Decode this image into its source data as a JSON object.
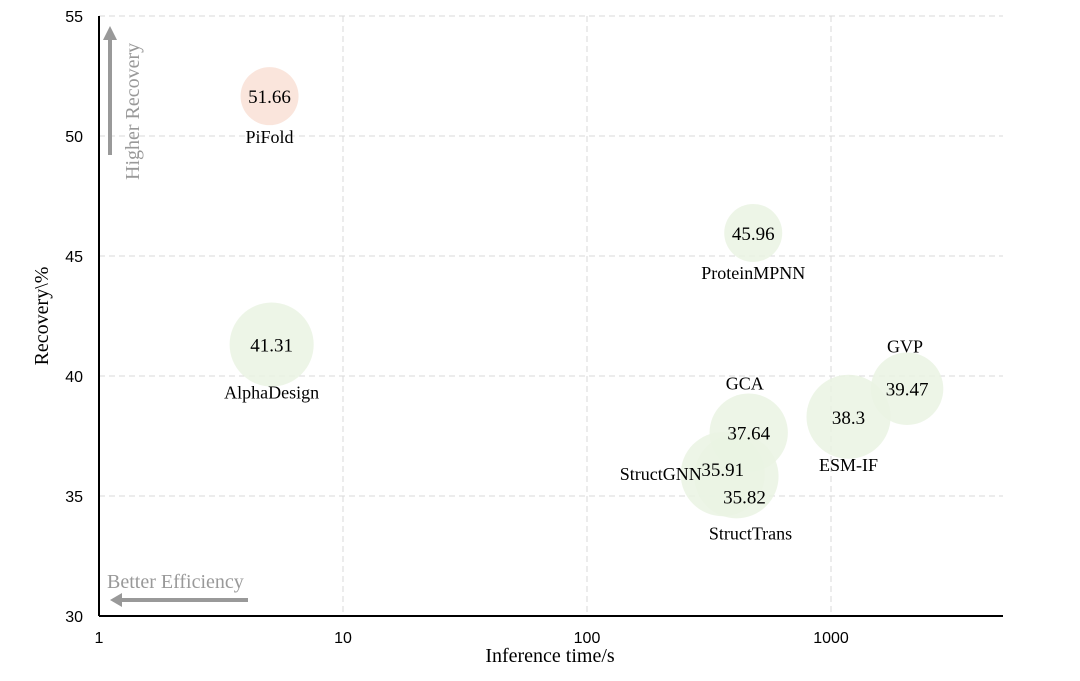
{
  "chart_data": {
    "type": "scatter",
    "xlabel": "Inference time/s",
    "ylabel": "Recovery\\%",
    "xscale": "log",
    "xlim": [
      1,
      5000
    ],
    "ylim": [
      30,
      55
    ],
    "x_ticks": [
      1,
      10,
      100,
      1000
    ],
    "x_tick_labels": [
      "1",
      "10",
      "100",
      "1000"
    ],
    "y_ticks": [
      30,
      35,
      40,
      45,
      50,
      55
    ],
    "y_tick_labels": [
      "30",
      "35",
      "40",
      "45",
      "50",
      "55"
    ],
    "grid": true,
    "points": [
      {
        "name": "PiFold",
        "x": 5,
        "y": 51.66,
        "value_label": "51.66",
        "size": 1.0,
        "color": "#f9e1d6",
        "label_pos": "below"
      },
      {
        "name": "ProteinMPNN",
        "x": 480,
        "y": 45.96,
        "value_label": "45.96",
        "size": 1.0,
        "color": "#eaf3e3",
        "label_pos": "below"
      },
      {
        "name": "AlphaDesign",
        "x": 5.1,
        "y": 41.31,
        "value_label": "41.31",
        "size": 1.45,
        "color": "#eaf3e3",
        "label_pos": "below"
      },
      {
        "name": "GVP",
        "x": 2050,
        "y": 39.47,
        "value_label": "39.47",
        "size": 1.25,
        "color": "#eaf3e3",
        "label_pos": "above"
      },
      {
        "name": "ESM-IF",
        "x": 1180,
        "y": 38.3,
        "value_label": "38.3",
        "size": 1.45,
        "color": "#eaf3e3",
        "label_pos": "below"
      },
      {
        "name": "GCA",
        "x": 460,
        "y": 37.64,
        "value_label": "37.64",
        "size": 1.35,
        "color": "#eaf3e3",
        "label_pos": "above"
      },
      {
        "name": "StructGNN",
        "x": 360,
        "y": 35.91,
        "value_label": "35.91",
        "size": 1.45,
        "color": "#eaf3e3",
        "label_pos": "left"
      },
      {
        "name": "StructTrans",
        "x": 410,
        "y": 35.82,
        "value_label": "35.82",
        "size": 1.45,
        "color": "#eaf3e3",
        "label_pos": "below"
      }
    ],
    "annotations": {
      "y_arrow": "Higher Recovery",
      "x_arrow": "Better Efficiency",
      "arrow_color": "#999999"
    }
  }
}
